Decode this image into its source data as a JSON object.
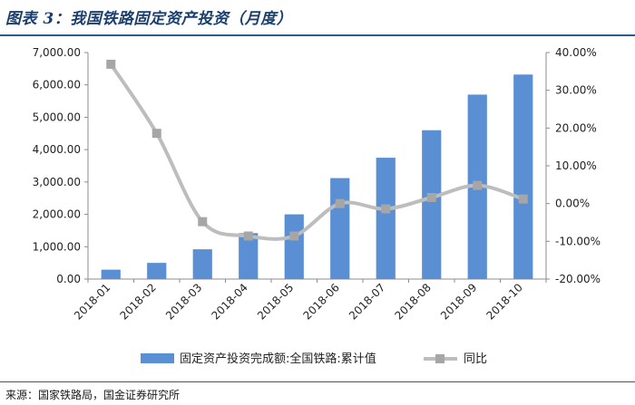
{
  "figure": {
    "title": "图表 3：我国铁路固定资产投资（月度）",
    "source": "来源：国家铁路局，国金证券研究所"
  },
  "colors": {
    "bar": "#5b8fd4",
    "line": "#bdbdbd",
    "marker": "#a6a6a6",
    "axis": "#8c8c8c",
    "text": "#222222",
    "title": "#1a3f6f"
  },
  "chart_data": {
    "type": "bar",
    "categories": [
      "2018-01",
      "2018-02",
      "2018-03",
      "2018-04",
      "2018-05",
      "2018-06",
      "2018-07",
      "2018-08",
      "2018-09",
      "2018-10"
    ],
    "series": [
      {
        "name": "固定资产投资完成额:全国铁路:累计值",
        "type": "bar",
        "axis": "left",
        "values": [
          290,
          500,
          920,
          1420,
          2000,
          3120,
          3750,
          4600,
          5700,
          6320
        ]
      },
      {
        "name": "同比",
        "type": "line",
        "axis": "right",
        "values": [
          36.9,
          18.6,
          -4.8,
          -8.6,
          -8.6,
          0.0,
          -1.4,
          1.6,
          4.8,
          1.2
        ]
      }
    ],
    "y_left": {
      "ylim": [
        0,
        7000
      ],
      "ticks": [
        0,
        1000,
        2000,
        3000,
        4000,
        5000,
        6000,
        7000
      ],
      "tick_labels": [
        "0.00",
        "1,000.00",
        "2,000.00",
        "3,000.00",
        "4,000.00",
        "5,000.00",
        "6,000.00",
        "7,000.00"
      ]
    },
    "y_right": {
      "ylim": [
        -20,
        40
      ],
      "ticks": [
        -20,
        -10,
        0,
        10,
        20,
        30,
        40
      ],
      "tick_labels": [
        "-20.00%",
        "-10.00%",
        "0.00%",
        "10.00%",
        "20.00%",
        "30.00%",
        "40.00%"
      ]
    },
    "grid": false,
    "legend_position": "bottom"
  }
}
